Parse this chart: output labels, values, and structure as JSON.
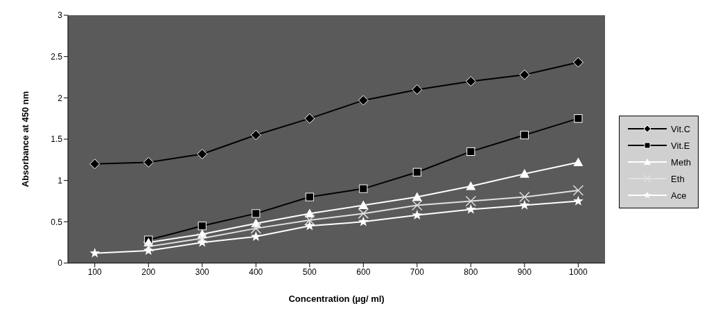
{
  "chart_data": {
    "type": "line",
    "xlabel": "Concentration (µg/ ml)",
    "ylabel": "Absorbance at 450 nm",
    "categories": [
      "100",
      "200",
      "300",
      "400",
      "500",
      "600",
      "700",
      "800",
      "900",
      "1000"
    ],
    "ylim": [
      0,
      3
    ],
    "yticks": [
      0,
      0.5,
      1,
      1.5,
      2,
      2.5,
      3
    ],
    "grid": false,
    "legend": "right",
    "line_style": "solid",
    "series": [
      {
        "name": "Vit.C",
        "color": "#000000",
        "marker": "diamond",
        "values": [
          1.2,
          1.22,
          1.32,
          1.55,
          1.75,
          1.97,
          2.1,
          2.2,
          2.28,
          2.43
        ]
      },
      {
        "name": "Vit.E",
        "color": "#000000",
        "marker": "square",
        "values": [
          null,
          0.28,
          0.45,
          0.6,
          0.8,
          0.9,
          1.1,
          1.35,
          1.55,
          1.75
        ]
      },
      {
        "name": "Meth",
        "color": "#ffffff",
        "marker": "triangle",
        "values": [
          null,
          0.25,
          0.35,
          0.48,
          0.6,
          0.7,
          0.8,
          0.93,
          1.08,
          1.22
        ]
      },
      {
        "name": "Eth",
        "color": "#e0e0e0",
        "marker": "cross",
        "values": [
          null,
          0.2,
          0.3,
          0.42,
          0.52,
          0.6,
          0.7,
          0.75,
          0.8,
          0.88
        ]
      },
      {
        "name": "Ace",
        "color": "#ffffff",
        "marker": "star",
        "values": [
          0.12,
          0.15,
          0.25,
          0.32,
          0.45,
          0.5,
          0.58,
          0.65,
          0.7,
          0.75
        ]
      }
    ]
  }
}
